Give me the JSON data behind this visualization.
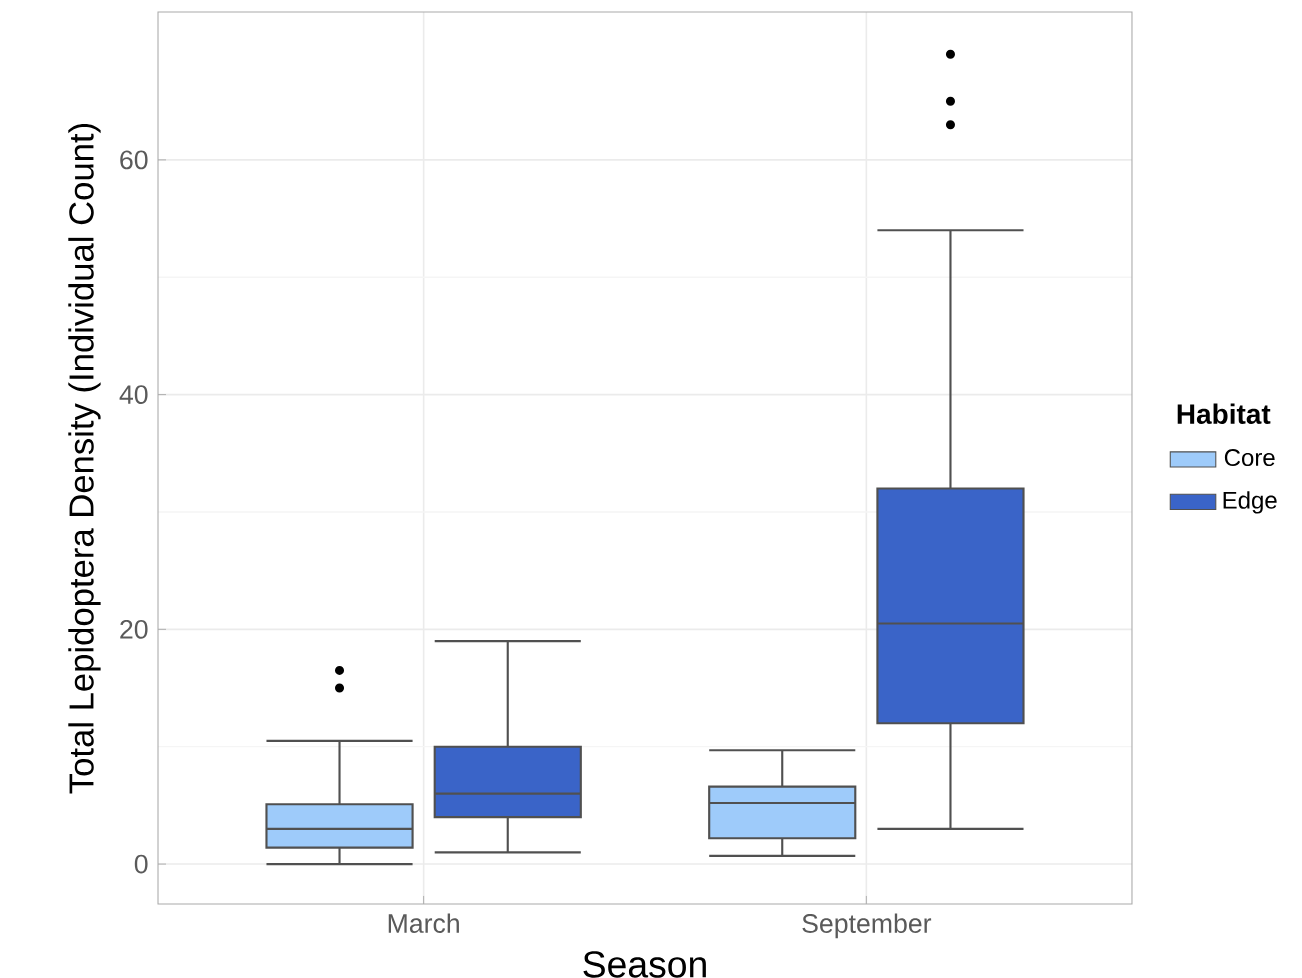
{
  "chart_data": {
    "type": "box",
    "xlabel": "Season",
    "ylabel": "Total Lepidoptera  Density  (Individual  Count)",
    "legend_title": "Habitat",
    "categories": [
      "March",
      "September"
    ],
    "series": [
      {
        "name": "Core",
        "color": "#9ecbfa",
        "boxes": [
          {
            "low": 0,
            "q1": 1.4,
            "median": 3,
            "q3": 5.1,
            "high": 10.5,
            "outliers": [
              15,
              16.5
            ]
          },
          {
            "low": 0.7,
            "q1": 2.2,
            "median": 5.2,
            "q3": 6.6,
            "high": 9.7
          }
        ]
      },
      {
        "name": "Edge",
        "color": "#3a64c8",
        "boxes": [
          {
            "low": 1,
            "q1": 4,
            "median": 6,
            "q3": 10,
            "high": 19
          },
          {
            "low": 3,
            "q1": 12,
            "median": 20.5,
            "q3": 32,
            "high": 54,
            "outliers": [
              63,
              65,
              69
            ]
          }
        ]
      }
    ],
    "ylim": [
      -3.4,
      72.6
    ],
    "yticks": [
      0,
      20,
      40,
      60
    ],
    "grid": true,
    "legend": "right"
  }
}
